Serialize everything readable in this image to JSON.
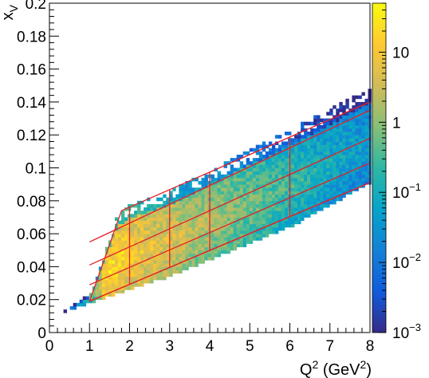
{
  "chart_data": {
    "type": "heatmap",
    "title": "",
    "xlabel_main": "Q",
    "xlabel_sup": "2",
    "xlabel_unit": " (GeV",
    "xlabel_unit_sup": "2",
    "xlabel_close": ")",
    "ylabel_main": "x",
    "ylabel_sub": "V",
    "xlim": [
      0,
      8
    ],
    "ylim": [
      0,
      0.2
    ],
    "x_ticks": [
      0,
      1,
      2,
      3,
      4,
      5,
      6,
      7,
      8
    ],
    "x_tick_labels": [
      "0",
      "1",
      "2",
      "3",
      "4",
      "5",
      "6",
      "7",
      "8"
    ],
    "y_ticks": [
      0,
      0.02,
      0.04,
      0.06,
      0.08,
      0.1,
      0.12,
      0.14,
      0.16,
      0.18,
      0.2
    ],
    "y_tick_labels": [
      "0",
      "0.02",
      "0.04",
      "0.06",
      "0.08",
      "0.1",
      "0.12",
      "0.14",
      "0.16",
      "0.18",
      "0.2"
    ],
    "grid": false,
    "colorbar": {
      "scale": "log",
      "range": [
        0.001,
        50
      ],
      "colors": [
        "#352a87",
        "#0f5cdd",
        "#1481d6",
        "#06a4ca",
        "#2eb7a4",
        "#87bf77",
        "#d1bb59",
        "#fec832",
        "#f9fb0e"
      ],
      "tick_values": [
        0.001,
        0.01,
        0.1,
        1,
        10
      ],
      "tick_labels": [
        {
          "base": "10",
          "exp": "−3"
        },
        {
          "base": "10",
          "exp": "−2"
        },
        {
          "base": "10",
          "exp": "−1"
        },
        {
          "base": "1",
          "exp": ""
        },
        {
          "base": "10",
          "exp": ""
        }
      ]
    },
    "density_region": {
      "x_range": [
        0.35,
        8.0
      ],
      "lower_edge": [
        [
          0.35,
          0.013
        ],
        [
          1.0,
          0.019
        ],
        [
          2.0,
          0.027
        ],
        [
          3.0,
          0.035
        ],
        [
          4.0,
          0.045
        ],
        [
          5.0,
          0.055
        ],
        [
          6.0,
          0.065
        ],
        [
          7.0,
          0.078
        ],
        [
          8.0,
          0.092
        ]
      ],
      "upper_edge": [
        [
          0.35,
          0.013
        ],
        [
          1.0,
          0.022
        ],
        [
          1.3,
          0.042
        ],
        [
          1.7,
          0.072
        ],
        [
          2.0,
          0.077
        ],
        [
          3.0,
          0.085
        ],
        [
          4.0,
          0.097
        ],
        [
          5.0,
          0.11
        ],
        [
          6.0,
          0.122
        ],
        [
          7.0,
          0.135
        ],
        [
          8.0,
          0.148
        ]
      ]
    },
    "bin_overlay": {
      "color": "#e41e26",
      "q2_edges": [
        2,
        3,
        4,
        6
      ],
      "xv_lines": [
        [
          [
            1.0,
            0.019
          ],
          [
            8.0,
            0.091
          ]
        ],
        [
          [
            1.0,
            0.029
          ],
          [
            8.0,
            0.103
          ]
        ],
        [
          [
            1.0,
            0.041
          ],
          [
            8.0,
            0.118
          ]
        ],
        [
          [
            1.0,
            0.055
          ],
          [
            8.0,
            0.135
          ]
        ]
      ],
      "outline": [
        [
          1.0,
          0.019
        ],
        [
          1.8,
          0.074
        ],
        [
          8.0,
          0.14
        ],
        [
          8.0,
          0.091
        ],
        [
          1.0,
          0.019
        ]
      ]
    }
  }
}
